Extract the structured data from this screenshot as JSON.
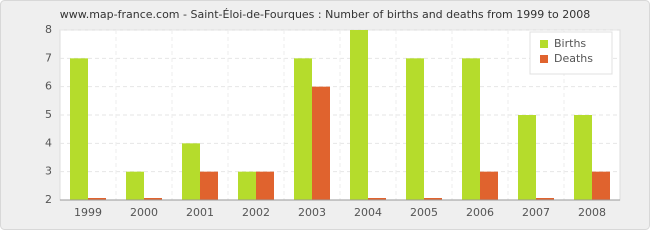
{
  "chart_data": {
    "type": "bar",
    "title": "www.map-france.com - Saint-Éloi-de-Fourques : Number of births and deaths from 1999 to 2008",
    "categories": [
      "1999",
      "2000",
      "2001",
      "2002",
      "2003",
      "2004",
      "2005",
      "2006",
      "2007",
      "2008"
    ],
    "series": [
      {
        "name": "Births",
        "color": "#b5dc2c",
        "values": [
          7,
          3,
          4,
          3,
          7,
          8,
          7,
          7,
          5,
          5
        ]
      },
      {
        "name": "Deaths",
        "color": "#e0632e",
        "values": [
          2,
          2,
          3,
          3,
          6,
          2,
          2,
          3,
          2,
          3
        ]
      }
    ],
    "ylim": [
      2,
      8
    ],
    "yticks": [
      2,
      3,
      4,
      5,
      6,
      7,
      8
    ],
    "grid": true,
    "legend": "top-right"
  }
}
